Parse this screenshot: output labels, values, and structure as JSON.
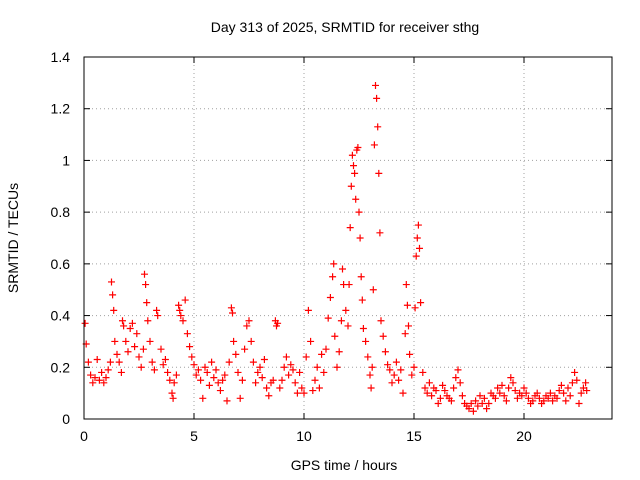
{
  "chart_data": {
    "type": "scatter",
    "title": "Day 313 of 2025, SRMTID for receiver sthg",
    "xlabel": "GPS time / hours",
    "ylabel": "SRMTID / TECUs",
    "xlim": [
      0,
      24
    ],
    "ylim": [
      0,
      1.4
    ],
    "xticks": [
      0,
      5,
      10,
      15,
      20
    ],
    "xtick_labels": [
      "0",
      "5",
      "10",
      "15",
      "20"
    ],
    "yticks": [
      0,
      0.2,
      0.4,
      0.6,
      0.8,
      1.0,
      1.2,
      1.4
    ],
    "ytick_labels": [
      "0",
      "0.2",
      "0.4",
      "0.6",
      "0.8",
      "1",
      "1.2",
      "1.4"
    ],
    "grid": true,
    "marker": "+",
    "series": [
      {
        "name": "SRMTID",
        "color": "#ff0000",
        "points": [
          [
            0.05,
            0.37
          ],
          [
            0.1,
            0.29
          ],
          [
            0.2,
            0.22
          ],
          [
            0.3,
            0.17
          ],
          [
            0.4,
            0.14
          ],
          [
            0.5,
            0.16
          ],
          [
            0.6,
            0.23
          ],
          [
            0.7,
            0.15
          ],
          [
            0.8,
            0.18
          ],
          [
            0.9,
            0.14
          ],
          [
            1.0,
            0.16
          ],
          [
            1.1,
            0.19
          ],
          [
            1.2,
            0.22
          ],
          [
            1.25,
            0.53
          ],
          [
            1.3,
            0.48
          ],
          [
            1.35,
            0.42
          ],
          [
            1.4,
            0.3
          ],
          [
            1.5,
            0.25
          ],
          [
            1.6,
            0.22
          ],
          [
            1.7,
            0.18
          ],
          [
            1.75,
            0.38
          ],
          [
            1.8,
            0.36
          ],
          [
            1.9,
            0.3
          ],
          [
            2.0,
            0.26
          ],
          [
            2.1,
            0.35
          ],
          [
            2.2,
            0.37
          ],
          [
            2.3,
            0.28
          ],
          [
            2.4,
            0.33
          ],
          [
            2.5,
            0.24
          ],
          [
            2.6,
            0.2
          ],
          [
            2.7,
            0.27
          ],
          [
            2.75,
            0.56
          ],
          [
            2.8,
            0.52
          ],
          [
            2.85,
            0.45
          ],
          [
            2.9,
            0.38
          ],
          [
            3.0,
            0.3
          ],
          [
            3.1,
            0.22
          ],
          [
            3.2,
            0.19
          ],
          [
            3.3,
            0.42
          ],
          [
            3.35,
            0.4
          ],
          [
            3.5,
            0.27
          ],
          [
            3.6,
            0.21
          ],
          [
            3.7,
            0.23
          ],
          [
            3.8,
            0.18
          ],
          [
            3.9,
            0.15
          ],
          [
            4.0,
            0.1
          ],
          [
            4.05,
            0.08
          ],
          [
            4.1,
            0.14
          ],
          [
            4.2,
            0.17
          ],
          [
            4.3,
            0.44
          ],
          [
            4.35,
            0.42
          ],
          [
            4.4,
            0.4
          ],
          [
            4.5,
            0.38
          ],
          [
            4.6,
            0.46
          ],
          [
            4.7,
            0.33
          ],
          [
            4.8,
            0.28
          ],
          [
            4.9,
            0.24
          ],
          [
            5.0,
            0.21
          ],
          [
            5.1,
            0.17
          ],
          [
            5.2,
            0.19
          ],
          [
            5.3,
            0.15
          ],
          [
            5.4,
            0.08
          ],
          [
            5.5,
            0.2
          ],
          [
            5.6,
            0.18
          ],
          [
            5.7,
            0.13
          ],
          [
            5.8,
            0.22
          ],
          [
            5.9,
            0.16
          ],
          [
            6.0,
            0.19
          ],
          [
            6.1,
            0.14
          ],
          [
            6.2,
            0.11
          ],
          [
            6.3,
            0.15
          ],
          [
            6.4,
            0.17
          ],
          [
            6.5,
            0.07
          ],
          [
            6.6,
            0.22
          ],
          [
            6.7,
            0.43
          ],
          [
            6.75,
            0.41
          ],
          [
            6.8,
            0.3
          ],
          [
            6.9,
            0.25
          ],
          [
            7.0,
            0.18
          ],
          [
            7.1,
            0.08
          ],
          [
            7.2,
            0.15
          ],
          [
            7.3,
            0.27
          ],
          [
            7.4,
            0.36
          ],
          [
            7.5,
            0.38
          ],
          [
            7.6,
            0.3
          ],
          [
            7.7,
            0.22
          ],
          [
            7.8,
            0.14
          ],
          [
            7.9,
            0.18
          ],
          [
            8.0,
            0.2
          ],
          [
            8.1,
            0.16
          ],
          [
            8.2,
            0.23
          ],
          [
            8.3,
            0.12
          ],
          [
            8.4,
            0.09
          ],
          [
            8.5,
            0.14
          ],
          [
            8.6,
            0.15
          ],
          [
            8.7,
            0.38
          ],
          [
            8.75,
            0.36
          ],
          [
            8.8,
            0.37
          ],
          [
            8.9,
            0.12
          ],
          [
            9.0,
            0.15
          ],
          [
            9.1,
            0.2
          ],
          [
            9.2,
            0.24
          ],
          [
            9.3,
            0.17
          ],
          [
            9.4,
            0.21
          ],
          [
            9.5,
            0.19
          ],
          [
            9.6,
            0.14
          ],
          [
            9.7,
            0.1
          ],
          [
            9.8,
            0.18
          ],
          [
            9.9,
            0.12
          ],
          [
            10.0,
            0.1
          ],
          [
            10.1,
            0.24
          ],
          [
            10.2,
            0.42
          ],
          [
            10.3,
            0.3
          ],
          [
            10.4,
            0.11
          ],
          [
            10.5,
            0.15
          ],
          [
            10.6,
            0.2
          ],
          [
            10.7,
            0.12
          ],
          [
            10.8,
            0.25
          ],
          [
            10.9,
            0.18
          ],
          [
            11.0,
            0.27
          ],
          [
            11.1,
            0.39
          ],
          [
            11.2,
            0.47
          ],
          [
            11.3,
            0.55
          ],
          [
            11.35,
            0.6
          ],
          [
            11.4,
            0.32
          ],
          [
            11.5,
            0.2
          ],
          [
            11.6,
            0.26
          ],
          [
            11.7,
            0.38
          ],
          [
            11.75,
            0.58
          ],
          [
            11.8,
            0.52
          ],
          [
            11.9,
            0.42
          ],
          [
            12.0,
            0.36
          ],
          [
            12.05,
            0.52
          ],
          [
            12.1,
            0.74
          ],
          [
            12.15,
            0.9
          ],
          [
            12.2,
            1.02
          ],
          [
            12.25,
            0.98
          ],
          [
            12.3,
            0.95
          ],
          [
            12.35,
            0.85
          ],
          [
            12.4,
            1.04
          ],
          [
            12.45,
            1.05
          ],
          [
            12.5,
            0.8
          ],
          [
            12.55,
            0.7
          ],
          [
            12.6,
            0.55
          ],
          [
            12.65,
            0.46
          ],
          [
            12.7,
            0.35
          ],
          [
            12.8,
            0.3
          ],
          [
            12.9,
            0.24
          ],
          [
            13.0,
            0.17
          ],
          [
            13.05,
            0.12
          ],
          [
            13.1,
            0.2
          ],
          [
            13.15,
            0.5
          ],
          [
            13.2,
            1.06
          ],
          [
            13.25,
            1.29
          ],
          [
            13.3,
            1.24
          ],
          [
            13.35,
            1.13
          ],
          [
            13.4,
            0.95
          ],
          [
            13.45,
            0.72
          ],
          [
            13.5,
            0.38
          ],
          [
            13.6,
            0.32
          ],
          [
            13.7,
            0.26
          ],
          [
            13.8,
            0.21
          ],
          [
            13.9,
            0.19
          ],
          [
            14.0,
            0.14
          ],
          [
            14.1,
            0.17
          ],
          [
            14.2,
            0.22
          ],
          [
            14.3,
            0.15
          ],
          [
            14.4,
            0.19
          ],
          [
            14.5,
            0.1
          ],
          [
            14.6,
            0.33
          ],
          [
            14.65,
            0.52
          ],
          [
            14.7,
            0.44
          ],
          [
            14.75,
            0.36
          ],
          [
            14.8,
            0.25
          ],
          [
            14.9,
            0.17
          ],
          [
            15.0,
            0.2
          ],
          [
            15.05,
            0.43
          ],
          [
            15.1,
            0.63
          ],
          [
            15.15,
            0.7
          ],
          [
            15.2,
            0.75
          ],
          [
            15.25,
            0.66
          ],
          [
            15.3,
            0.45
          ],
          [
            15.4,
            0.18
          ],
          [
            15.5,
            0.12
          ],
          [
            15.6,
            0.1
          ],
          [
            15.7,
            0.14
          ],
          [
            15.8,
            0.09
          ],
          [
            15.9,
            0.12
          ],
          [
            16.0,
            0.11
          ],
          [
            16.1,
            0.06
          ],
          [
            16.2,
            0.08
          ],
          [
            16.3,
            0.13
          ],
          [
            16.4,
            0.11
          ],
          [
            16.5,
            0.09
          ],
          [
            16.6,
            0.08
          ],
          [
            16.7,
            0.07
          ],
          [
            16.8,
            0.12
          ],
          [
            16.9,
            0.16
          ],
          [
            17.0,
            0.19
          ],
          [
            17.1,
            0.14
          ],
          [
            17.2,
            0.09
          ],
          [
            17.3,
            0.06
          ],
          [
            17.4,
            0.05
          ],
          [
            17.5,
            0.04
          ],
          [
            17.6,
            0.06
          ],
          [
            17.7,
            0.03
          ],
          [
            17.8,
            0.07
          ],
          [
            17.9,
            0.05
          ],
          [
            18.0,
            0.09
          ],
          [
            18.1,
            0.06
          ],
          [
            18.2,
            0.08
          ],
          [
            18.3,
            0.04
          ],
          [
            18.4,
            0.06
          ],
          [
            18.5,
            0.1
          ],
          [
            18.6,
            0.09
          ],
          [
            18.7,
            0.08
          ],
          [
            18.8,
            0.12
          ],
          [
            18.9,
            0.1
          ],
          [
            19.0,
            0.13
          ],
          [
            19.1,
            0.09
          ],
          [
            19.2,
            0.07
          ],
          [
            19.3,
            0.12
          ],
          [
            19.4,
            0.16
          ],
          [
            19.5,
            0.14
          ],
          [
            19.6,
            0.11
          ],
          [
            19.7,
            0.08
          ],
          [
            19.8,
            0.1
          ],
          [
            19.9,
            0.09
          ],
          [
            20.0,
            0.12
          ],
          [
            20.1,
            0.1
          ],
          [
            20.2,
            0.08
          ],
          [
            20.3,
            0.06
          ],
          [
            20.4,
            0.07
          ],
          [
            20.5,
            0.09
          ],
          [
            20.6,
            0.1
          ],
          [
            20.7,
            0.08
          ],
          [
            20.8,
            0.06
          ],
          [
            20.9,
            0.07
          ],
          [
            21.0,
            0.09
          ],
          [
            21.1,
            0.08
          ],
          [
            21.2,
            0.1
          ],
          [
            21.3,
            0.07
          ],
          [
            21.4,
            0.09
          ],
          [
            21.5,
            0.08
          ],
          [
            21.6,
            0.11
          ],
          [
            21.7,
            0.13
          ],
          [
            21.8,
            0.1
          ],
          [
            21.9,
            0.07
          ],
          [
            22.0,
            0.12
          ],
          [
            22.1,
            0.09
          ],
          [
            22.2,
            0.14
          ],
          [
            22.3,
            0.18
          ],
          [
            22.4,
            0.15
          ],
          [
            22.5,
            0.06
          ],
          [
            22.6,
            0.1
          ],
          [
            22.7,
            0.12
          ],
          [
            22.8,
            0.14
          ],
          [
            22.85,
            0.11
          ]
        ]
      }
    ]
  }
}
